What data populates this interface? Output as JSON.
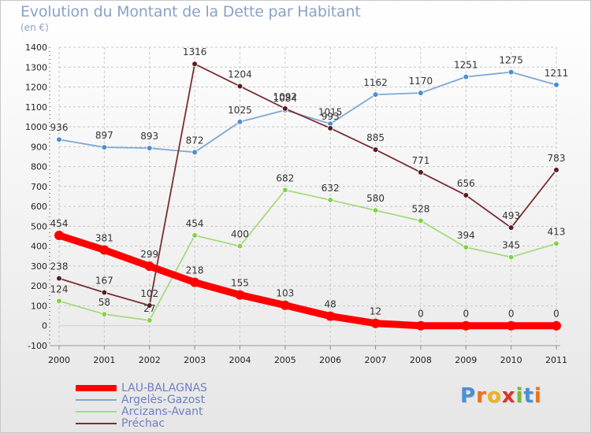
{
  "header": {
    "title": "Evolution du Montant de la Dette par Habitant",
    "subtitle": "(en €)"
  },
  "colors": {
    "title": "#8aa2c8",
    "grid": "#c8c8c8",
    "zero_line": "#d0d0d0"
  },
  "logo": {
    "letters": [
      "P",
      "r",
      "o",
      "x",
      "i",
      "t",
      "i"
    ],
    "colors": [
      "#4a8fd6",
      "#e8731a",
      "#f0b320",
      "#d9342b",
      "#7ab83a",
      "#4a8fd6",
      "#e8731a"
    ]
  },
  "chart_data": {
    "type": "line",
    "title": "Evolution du Montant de la Dette par Habitant",
    "ylabel": "(en €)",
    "xlabel": "",
    "ylim": [
      -100,
      1400
    ],
    "ytick_step": 100,
    "grid": true,
    "legend_position": "bottom-left",
    "categories": [
      "2000",
      "2001",
      "2002",
      "2003",
      "2004",
      "2005",
      "2006",
      "2007",
      "2008",
      "2009",
      "2010",
      "2011"
    ],
    "series": [
      {
        "name": "LAU-BALAGNAS",
        "color": "#ff0000",
        "marker_color": "#ff0000",
        "width": "thick",
        "values": [
          454,
          381,
          299,
          218,
          155,
          103,
          48,
          12,
          0,
          0,
          0,
          0
        ],
        "labels": [
          "454",
          "381",
          "299",
          "218",
          "155",
          "103",
          "48",
          "12",
          "0",
          "0",
          "0",
          "0"
        ]
      },
      {
        "name": "Argelès-Gazost",
        "color": "#7fa8d4",
        "marker_color": "#4a8fd0",
        "width": "thin",
        "values": [
          936,
          897,
          893,
          872,
          1025,
          1084,
          1015,
          1162,
          1170,
          1251,
          1275,
          1211
        ],
        "labels": [
          "936",
          "897",
          "893",
          "872",
          "1025",
          "1084",
          "1015",
          "1162",
          "1170",
          "1251",
          "1275",
          "1211"
        ]
      },
      {
        "name": "Arcizans-Avant",
        "color": "#a6db7e",
        "marker_color": "#86d04a",
        "width": "thin",
        "values": [
          124,
          58,
          27,
          454,
          400,
          682,
          632,
          580,
          528,
          394,
          345,
          413
        ],
        "labels": [
          "124",
          "58",
          "27",
          "454",
          "400",
          "682",
          "632",
          "580",
          "528",
          "394",
          "345",
          "413"
        ]
      },
      {
        "name": "Préchac",
        "color": "#7a2e30",
        "marker_color": "#5a1c1f",
        "width": "thin",
        "values": [
          238,
          167,
          102,
          1316,
          1204,
          1092,
          993,
          885,
          771,
          656,
          493,
          783
        ],
        "labels": [
          "238",
          "167",
          "102",
          "1316",
          "1204",
          "1092",
          "993",
          "885",
          "771",
          "656",
          "493",
          "783"
        ]
      }
    ]
  }
}
